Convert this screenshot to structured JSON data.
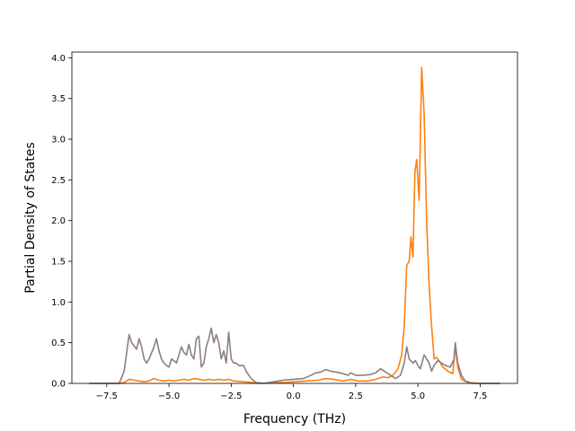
{
  "chart_data": {
    "type": "line",
    "title": "",
    "xlabel": "Frequency (THz)",
    "ylabel": "Partial Density of States",
    "xlim": [
      -8.9,
      9.0
    ],
    "ylim": [
      0.0,
      4.07
    ],
    "xticks": [
      -7.5,
      -5.0,
      -2.5,
      0.0,
      2.5,
      5.0,
      7.5
    ],
    "xtick_labels": [
      "−7.5",
      "−5.0",
      "−2.5",
      "0.0",
      "2.5",
      "5.0",
      "7.5"
    ],
    "yticks": [
      0.0,
      0.5,
      1.0,
      1.5,
      2.0,
      2.5,
      3.0,
      3.5,
      4.0
    ],
    "ytick_labels": [
      "0.0",
      "0.5",
      "1.0",
      "1.5",
      "2.0",
      "2.5",
      "3.0",
      "3.5",
      "4.0"
    ],
    "grid": false,
    "legend": "none",
    "series": [
      {
        "color": "#ff7f0e",
        "points": [
          [
            -8.2,
            0.0
          ],
          [
            -7.0,
            0.0
          ],
          [
            -6.8,
            0.01
          ],
          [
            -6.6,
            0.05
          ],
          [
            -6.4,
            0.04
          ],
          [
            -6.2,
            0.03
          ],
          [
            -6.0,
            0.02
          ],
          [
            -5.8,
            0.03
          ],
          [
            -5.6,
            0.06
          ],
          [
            -5.4,
            0.04
          ],
          [
            -5.2,
            0.03
          ],
          [
            -5.0,
            0.04
          ],
          [
            -4.8,
            0.03
          ],
          [
            -4.6,
            0.04
          ],
          [
            -4.4,
            0.05
          ],
          [
            -4.2,
            0.04
          ],
          [
            -4.0,
            0.06
          ],
          [
            -3.8,
            0.05
          ],
          [
            -3.6,
            0.04
          ],
          [
            -3.4,
            0.05
          ],
          [
            -3.2,
            0.04
          ],
          [
            -3.0,
            0.05
          ],
          [
            -2.8,
            0.04
          ],
          [
            -2.6,
            0.05
          ],
          [
            -2.4,
            0.03
          ],
          [
            -2.0,
            0.02
          ],
          [
            -1.6,
            0.01
          ],
          [
            -1.4,
            0.0
          ],
          [
            -0.8,
            0.01
          ],
          [
            -0.3,
            0.01
          ],
          [
            0.0,
            0.02
          ],
          [
            0.5,
            0.03
          ],
          [
            1.0,
            0.04
          ],
          [
            1.3,
            0.06
          ],
          [
            1.6,
            0.05
          ],
          [
            2.0,
            0.03
          ],
          [
            2.3,
            0.05
          ],
          [
            2.6,
            0.03
          ],
          [
            3.0,
            0.03
          ],
          [
            3.3,
            0.05
          ],
          [
            3.6,
            0.08
          ],
          [
            3.8,
            0.07
          ],
          [
            4.0,
            0.1
          ],
          [
            4.2,
            0.18
          ],
          [
            4.35,
            0.35
          ],
          [
            4.45,
            0.7
          ],
          [
            4.55,
            1.45
          ],
          [
            4.65,
            1.5
          ],
          [
            4.72,
            1.8
          ],
          [
            4.8,
            1.55
          ],
          [
            4.88,
            2.6
          ],
          [
            4.95,
            2.75
          ],
          [
            5.05,
            2.25
          ],
          [
            5.15,
            3.88
          ],
          [
            5.25,
            3.3
          ],
          [
            5.35,
            2.0
          ],
          [
            5.45,
            1.2
          ],
          [
            5.55,
            0.7
          ],
          [
            5.65,
            0.3
          ],
          [
            5.75,
            0.32
          ],
          [
            5.85,
            0.28
          ],
          [
            6.0,
            0.2
          ],
          [
            6.2,
            0.15
          ],
          [
            6.4,
            0.12
          ],
          [
            6.5,
            0.45
          ],
          [
            6.6,
            0.2
          ],
          [
            6.75,
            0.05
          ],
          [
            7.0,
            0.01
          ],
          [
            7.5,
            0.0
          ],
          [
            8.3,
            0.0
          ]
        ]
      },
      {
        "color": "#8c7f86",
        "points": [
          [
            -8.2,
            0.0
          ],
          [
            -7.0,
            0.0
          ],
          [
            -6.8,
            0.15
          ],
          [
            -6.6,
            0.6
          ],
          [
            -6.5,
            0.5
          ],
          [
            -6.3,
            0.42
          ],
          [
            -6.2,
            0.55
          ],
          [
            -6.1,
            0.45
          ],
          [
            -6.0,
            0.3
          ],
          [
            -5.9,
            0.25
          ],
          [
            -5.8,
            0.3
          ],
          [
            -5.6,
            0.45
          ],
          [
            -5.5,
            0.55
          ],
          [
            -5.4,
            0.4
          ],
          [
            -5.3,
            0.3
          ],
          [
            -5.2,
            0.25
          ],
          [
            -5.1,
            0.22
          ],
          [
            -5.0,
            0.2
          ],
          [
            -4.9,
            0.3
          ],
          [
            -4.8,
            0.28
          ],
          [
            -4.7,
            0.25
          ],
          [
            -4.6,
            0.35
          ],
          [
            -4.5,
            0.45
          ],
          [
            -4.4,
            0.38
          ],
          [
            -4.3,
            0.35
          ],
          [
            -4.2,
            0.48
          ],
          [
            -4.1,
            0.35
          ],
          [
            -4.0,
            0.3
          ],
          [
            -3.9,
            0.55
          ],
          [
            -3.8,
            0.58
          ],
          [
            -3.7,
            0.2
          ],
          [
            -3.6,
            0.25
          ],
          [
            -3.5,
            0.45
          ],
          [
            -3.4,
            0.55
          ],
          [
            -3.3,
            0.68
          ],
          [
            -3.2,
            0.5
          ],
          [
            -3.1,
            0.6
          ],
          [
            -3.0,
            0.5
          ],
          [
            -2.9,
            0.3
          ],
          [
            -2.8,
            0.4
          ],
          [
            -2.7,
            0.25
          ],
          [
            -2.6,
            0.63
          ],
          [
            -2.5,
            0.3
          ],
          [
            -2.4,
            0.25
          ],
          [
            -2.3,
            0.25
          ],
          [
            -2.2,
            0.22
          ],
          [
            -2.0,
            0.22
          ],
          [
            -1.9,
            0.15
          ],
          [
            -1.7,
            0.06
          ],
          [
            -1.5,
            0.01
          ],
          [
            -1.2,
            0.0
          ],
          [
            -0.8,
            0.02
          ],
          [
            -0.4,
            0.04
          ],
          [
            0.0,
            0.05
          ],
          [
            0.4,
            0.06
          ],
          [
            0.7,
            0.1
          ],
          [
            0.9,
            0.13
          ],
          [
            1.1,
            0.14
          ],
          [
            1.3,
            0.17
          ],
          [
            1.5,
            0.15
          ],
          [
            1.7,
            0.14
          ],
          [
            2.0,
            0.12
          ],
          [
            2.2,
            0.1
          ],
          [
            2.3,
            0.13
          ],
          [
            2.5,
            0.1
          ],
          [
            2.8,
            0.1
          ],
          [
            3.1,
            0.11
          ],
          [
            3.3,
            0.13
          ],
          [
            3.5,
            0.18
          ],
          [
            3.7,
            0.14
          ],
          [
            3.9,
            0.1
          ],
          [
            4.1,
            0.06
          ],
          [
            4.3,
            0.1
          ],
          [
            4.45,
            0.25
          ],
          [
            4.55,
            0.45
          ],
          [
            4.65,
            0.3
          ],
          [
            4.8,
            0.25
          ],
          [
            4.9,
            0.28
          ],
          [
            5.0,
            0.22
          ],
          [
            5.1,
            0.18
          ],
          [
            5.25,
            0.35
          ],
          [
            5.35,
            0.3
          ],
          [
            5.45,
            0.25
          ],
          [
            5.55,
            0.15
          ],
          [
            5.65,
            0.22
          ],
          [
            5.8,
            0.28
          ],
          [
            5.95,
            0.25
          ],
          [
            6.1,
            0.22
          ],
          [
            6.3,
            0.2
          ],
          [
            6.45,
            0.3
          ],
          [
            6.5,
            0.5
          ],
          [
            6.6,
            0.25
          ],
          [
            6.75,
            0.1
          ],
          [
            6.9,
            0.03
          ],
          [
            7.2,
            0.0
          ],
          [
            8.3,
            0.0
          ]
        ]
      }
    ]
  }
}
